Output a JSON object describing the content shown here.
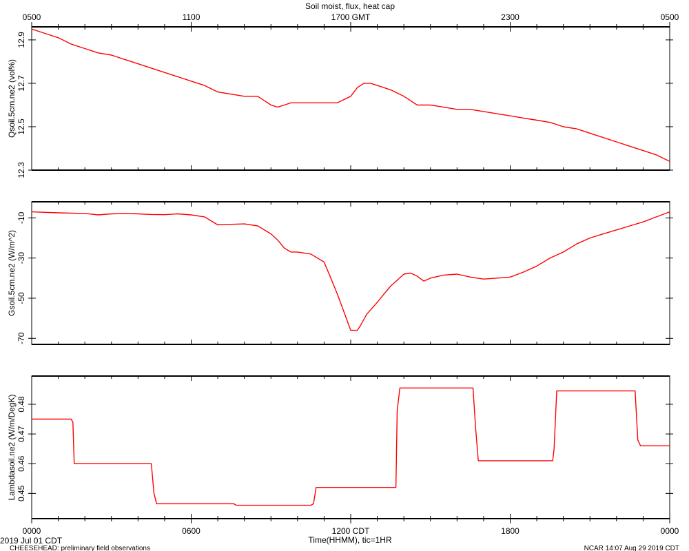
{
  "figure": {
    "title": "Soil moist, flux, heat cap",
    "top_ticks": [
      "0500",
      "1100",
      "1700 GMT",
      "2300",
      "0500"
    ],
    "bottom_ticks": [
      "0000",
      "0600",
      "1200 CDT",
      "1800",
      "0000"
    ],
    "xlabel": "Time(HHMM), tic=1HR",
    "date_label": "2019 Jul 01 CDT",
    "project_label": "CHEESEHEAD: preliminary field observations",
    "credit_label": "NCAR 14:07 Aug 29 2019 CDT",
    "line_color": "#ff0000"
  },
  "chart_data": [
    {
      "type": "line",
      "ylabel": "Qsoil.5cm.ne2 (vol%)",
      "ylim": [
        12.3,
        12.96
      ],
      "yticks": [
        "12.3",
        "12.5",
        "12.7",
        "12.9"
      ],
      "x_hours": [
        0,
        0.5,
        1,
        1.5,
        2,
        2.5,
        3,
        3.5,
        4,
        4.5,
        5,
        5.5,
        6,
        6.5,
        7,
        7.5,
        8,
        8.5,
        9,
        9.25,
        9.5,
        9.75,
        10,
        10.5,
        11,
        11.5,
        12,
        12.25,
        12.5,
        12.75,
        13,
        13.5,
        14,
        14.5,
        15,
        15.5,
        16,
        16.5,
        17,
        17.5,
        18,
        18.5,
        19,
        19.5,
        20,
        20.5,
        21,
        21.5,
        22,
        22.5,
        23,
        23.5,
        24
      ],
      "values": [
        12.95,
        12.93,
        12.91,
        12.88,
        12.86,
        12.84,
        12.83,
        12.81,
        12.79,
        12.77,
        12.75,
        12.73,
        12.71,
        12.69,
        12.66,
        12.65,
        12.64,
        12.64,
        12.6,
        12.59,
        12.6,
        12.61,
        12.61,
        12.61,
        12.61,
        12.61,
        12.64,
        12.68,
        12.7,
        12.7,
        12.69,
        12.67,
        12.64,
        12.6,
        12.6,
        12.59,
        12.58,
        12.58,
        12.57,
        12.56,
        12.55,
        12.54,
        12.53,
        12.52,
        12.5,
        12.49,
        12.47,
        12.45,
        12.43,
        12.41,
        12.39,
        12.37,
        12.34
      ]
    },
    {
      "type": "line",
      "ylabel": "Gsoil.5cm.ne2 (W/m^2)",
      "ylim": [
        -73,
        -2
      ],
      "yticks": [
        "-70",
        "-50",
        "-30",
        "-10"
      ],
      "x_hours": [
        0,
        1,
        2,
        2.5,
        3,
        3.5,
        4,
        4.5,
        5,
        5.5,
        6,
        6.5,
        7,
        7.25,
        7.5,
        8,
        8.5,
        9,
        9.25,
        9.5,
        9.75,
        10,
        10.5,
        11,
        11.25,
        11.5,
        11.75,
        12,
        12.25,
        12.35,
        12.6,
        13,
        13.25,
        13.5,
        14,
        14.25,
        14.5,
        14.75,
        15,
        15.5,
        16,
        16.5,
        17,
        17.5,
        18,
        18.5,
        19,
        19.5,
        20,
        20.5,
        21,
        21.5,
        22,
        22.5,
        23,
        23.5,
        24
      ],
      "values": [
        -7,
        -7.5,
        -7.8,
        -8.5,
        -8,
        -7.8,
        -8,
        -8.3,
        -8.4,
        -8,
        -8.5,
        -9.5,
        -13.5,
        -13.3,
        -13.2,
        -13,
        -14,
        -18,
        -21,
        -25,
        -27,
        -27,
        -28,
        -32,
        -40,
        -48,
        -57,
        -66,
        -66,
        -64,
        -58,
        -52,
        -48,
        -44,
        -38,
        -37.5,
        -39,
        -41.5,
        -40,
        -38.5,
        -38,
        -39.5,
        -40.5,
        -40,
        -39.5,
        -37,
        -34,
        -30,
        -27,
        -23,
        -20,
        -18,
        -16,
        -14,
        -12,
        -9.5,
        -7
      ]
    },
    {
      "type": "line",
      "ylabel": "Lambdasoil.ne2 (W/m/DegK)",
      "ylim": [
        0.4415,
        0.4895
      ],
      "yticks": [
        "0.45",
        "0.46",
        "0.47",
        "0.48"
      ],
      "x_hours": [
        0,
        1.48,
        1.55,
        1.6,
        4.5,
        4.6,
        4.7,
        7.6,
        7.7,
        10.5,
        10.6,
        10.7,
        13.7,
        13.75,
        13.85,
        16.6,
        16.7,
        16.8,
        19.6,
        19.65,
        19.75,
        22.7,
        22.8,
        22.9,
        24
      ],
      "values": [
        0.475,
        0.475,
        0.474,
        0.46,
        0.46,
        0.45,
        0.4465,
        0.4465,
        0.446,
        0.446,
        0.4465,
        0.452,
        0.452,
        0.478,
        0.4855,
        0.4855,
        0.472,
        0.461,
        0.461,
        0.465,
        0.4845,
        0.4845,
        0.468,
        0.466,
        0.466
      ]
    }
  ]
}
